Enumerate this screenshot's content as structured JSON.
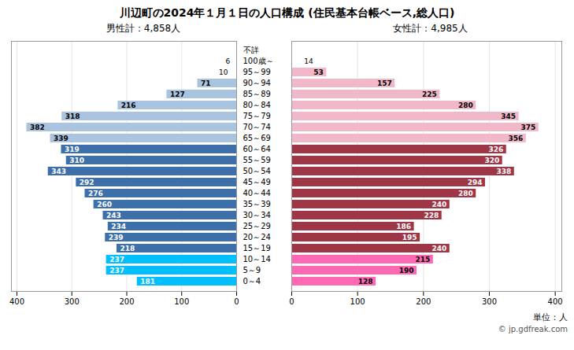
{
  "chart_data": {
    "type": "bar",
    "orientation": "horizontal",
    "title": "川辺町の2024年１月１日の人口構成 (住民基本台帳ベース,総人口)",
    "categories": [
      "不詳",
      "100歳～",
      "95～99",
      "90～94",
      "85～89",
      "80～84",
      "75～79",
      "70～74",
      "65～69",
      "60～64",
      "55～59",
      "50～54",
      "45～49",
      "40～44",
      "35～39",
      "30～34",
      "25～29",
      "20～24",
      "15～19",
      "10～14",
      "5～9",
      "0～4"
    ],
    "series": [
      {
        "name": "男性計：4,858人",
        "values": [
          0,
          6,
          10,
          71,
          127,
          216,
          318,
          382,
          339,
          319,
          310,
          343,
          292,
          276,
          260,
          243,
          234,
          239,
          218,
          237,
          237,
          181
        ],
        "colors": [
          null,
          null,
          null,
          "#aac4e0",
          "#aac4e0",
          "#aac4e0",
          "#aac4e0",
          "#aac4e0",
          "#aac4e0",
          "#3d6faa",
          "#3d6faa",
          "#3d6faa",
          "#3d6faa",
          "#3d6faa",
          "#3d6faa",
          "#3d6faa",
          "#3d6faa",
          "#3d6faa",
          "#3d6faa",
          "#00bfff",
          "#00bfff",
          "#00bfff"
        ]
      },
      {
        "name": "女性計：4,985人",
        "values": [
          0,
          14,
          53,
          157,
          225,
          280,
          345,
          375,
          356,
          326,
          320,
          338,
          294,
          280,
          240,
          228,
          186,
          195,
          240,
          215,
          190,
          128
        ],
        "colors": [
          null,
          null,
          "#f0b8c8",
          "#f0b8c8",
          "#f0b8c8",
          "#f0b8c8",
          "#f0b8c8",
          "#f0b8c8",
          "#f0b8c8",
          "#9e3645",
          "#9e3645",
          "#9e3645",
          "#9e3645",
          "#9e3645",
          "#9e3645",
          "#9e3645",
          "#9e3645",
          "#9e3645",
          "#9e3645",
          "#ff69b4",
          "#ff69b4",
          "#ff69b4"
        ]
      }
    ],
    "xlim": [
      0,
      410
    ],
    "xticks": [
      0,
      100,
      200,
      300,
      400
    ],
    "grid": true,
    "data_labels": true,
    "annotations": [
      "単位：人",
      "© jp.gdfreak.com"
    ]
  }
}
